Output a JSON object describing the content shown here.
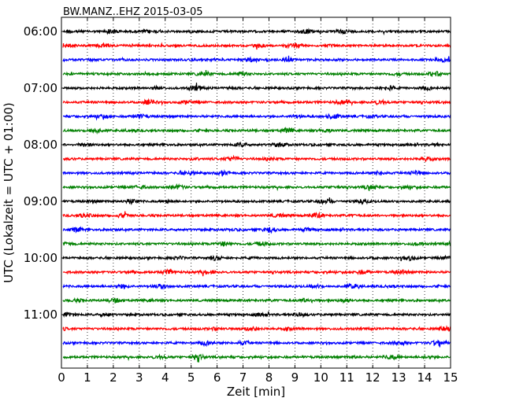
{
  "chart_data": {
    "type": "line",
    "title": "BW.MANZ..EHZ 2015-03-05",
    "xlabel": "Zeit  [min]",
    "ylabel": "UTC (Lokalzeit = UTC + 01:00)",
    "xlim": [
      0,
      15
    ],
    "x_ticks": [
      "0",
      "1",
      "2",
      "3",
      "4",
      "5",
      "6",
      "7",
      "8",
      "9",
      "10",
      "11",
      "12",
      "13",
      "14",
      "15"
    ],
    "y_tick_labels": [
      "06:00",
      "07:00",
      "08:00",
      "09:00",
      "10:00",
      "11:00"
    ],
    "trace_interval_min": 15,
    "grid": "vertical dotted",
    "trace_colors": [
      "#000000",
      "#ff0000",
      "#0000ff",
      "#008000"
    ],
    "trace_start_times": [
      "06:00",
      "06:15",
      "06:30",
      "06:45",
      "07:00",
      "07:15",
      "07:30",
      "07:45",
      "08:00",
      "08:15",
      "08:30",
      "08:45",
      "09:00",
      "09:15",
      "09:30",
      "09:45",
      "10:00",
      "10:15",
      "10:30",
      "10:45",
      "11:00",
      "11:15",
      "11:30",
      "11:45"
    ]
  }
}
